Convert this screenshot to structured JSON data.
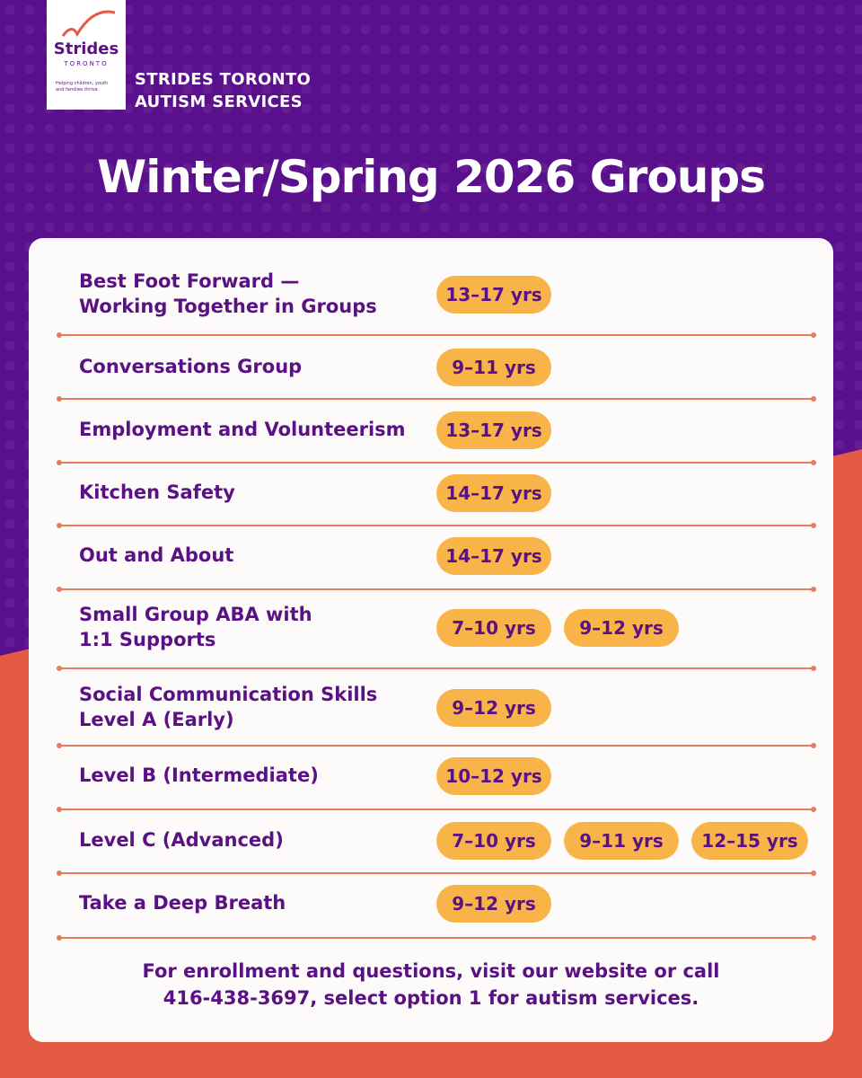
{
  "logo": {
    "name": "Strides",
    "city": "TORONTO",
    "tagline": [
      "Helping children, youth",
      "and families thrive"
    ]
  },
  "header": {
    "org": [
      "STRIDES TORONTO",
      "AUTISM SERVICES"
    ],
    "title": "Winter/Spring 2026 Groups"
  },
  "groups": [
    {
      "name": [
        "Best Foot Forward —",
        "Working Together in Groups"
      ],
      "ages": [
        "13–17 yrs"
      ]
    },
    {
      "name": [
        "Conversations Group"
      ],
      "ages": [
        "9–11 yrs"
      ]
    },
    {
      "name": [
        "Employment and Volunteerism"
      ],
      "ages": [
        "13–17 yrs"
      ]
    },
    {
      "name": [
        "Kitchen Safety"
      ],
      "ages": [
        "14–17 yrs"
      ]
    },
    {
      "name": [
        "Out and About"
      ],
      "ages": [
        "14–17 yrs"
      ]
    },
    {
      "name": [
        "Small Group ABA with",
        "1:1 Supports"
      ],
      "ages": [
        "7–10 yrs",
        "9–12 yrs"
      ]
    },
    {
      "name": [
        "Social Communication Skills",
        "Level A (Early)"
      ],
      "ages": [
        "9–12 yrs"
      ]
    },
    {
      "name": [
        "Level B (Intermediate)"
      ],
      "ages": [
        "10–12 yrs"
      ]
    },
    {
      "name": [
        "Level C (Advanced)"
      ],
      "ages": [
        "7–10 yrs",
        "9–11 yrs",
        "12–15 yrs"
      ]
    },
    {
      "name": [
        "Take a Deep Breath"
      ],
      "ages": [
        "9–12 yrs"
      ]
    }
  ],
  "footer": [
    "For enrollment and questions,  visit our website or call",
    "416-438-3697, select option 1 for autism services."
  ]
}
